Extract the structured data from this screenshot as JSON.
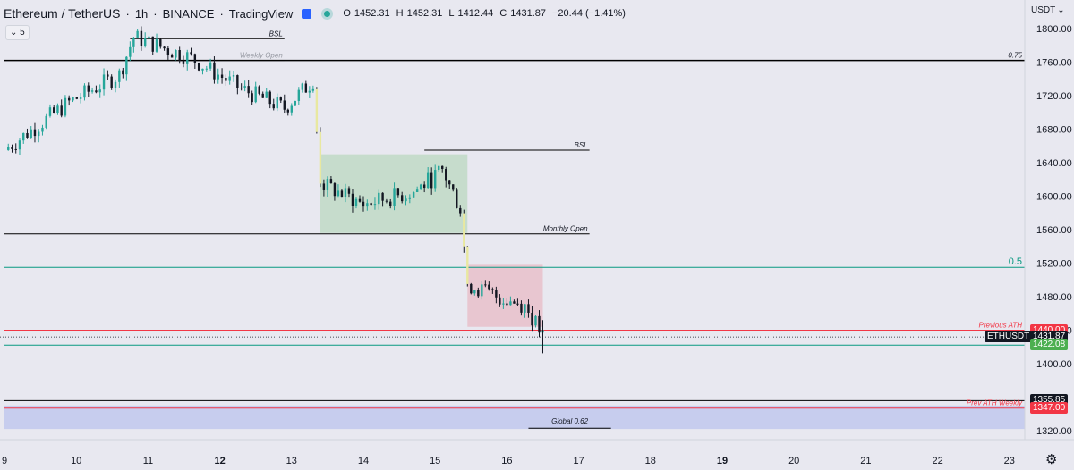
{
  "header": {
    "symbol": "Ethereum / TetherUS",
    "interval": "1h",
    "exchange": "BINANCE",
    "source": "TradingView",
    "ohlc": {
      "o_label": "O",
      "o": "1452.31",
      "h_label": "H",
      "h": "1452.31",
      "l_label": "L",
      "l": "1412.44",
      "c_label": "C",
      "c": "1431.87",
      "change": "−20.44 (−1.41%)"
    },
    "collapse_label": "5",
    "currency": "USDT"
  },
  "colors": {
    "background": "#e8e8f0",
    "up": "#26a69a",
    "down": "#131722",
    "line_black": "#000000",
    "line_green": "#089981",
    "line_red": "#f23645",
    "zone_green": "#c6dccc",
    "zone_red": "#e8c6d0",
    "zone_blue": "#c7cdee"
  },
  "chart_data": {
    "type": "candlestick",
    "x": [
      "9",
      "10",
      "11",
      "12",
      "13",
      "14",
      "15",
      "16",
      "17",
      "18",
      "19",
      "20",
      "21",
      "22",
      "23"
    ],
    "x_major": [
      "12",
      "19"
    ],
    "y_ticks": [
      "1800.00",
      "1760.00",
      "1720.00",
      "1680.00",
      "1640.00",
      "1600.00",
      "1560.00",
      "1520.00",
      "1480.00",
      "1440.00",
      "1400.00",
      "1320.00"
    ],
    "ylim": [
      1310,
      1820
    ],
    "xlim": [
      9,
      23
    ],
    "last_price": 1431.87,
    "segments": [
      {
        "t0": 9.0,
        "t1": 9.9,
        "p0": 1655,
        "p1": 1712
      },
      {
        "t0": 9.9,
        "t1": 10.6,
        "p0": 1712,
        "p1": 1745
      },
      {
        "t0": 10.6,
        "t1": 10.8,
        "p0": 1745,
        "p1": 1790
      },
      {
        "t0": 10.8,
        "t1": 11.6,
        "p0": 1790,
        "p1": 1765
      },
      {
        "t0": 11.6,
        "t1": 12.3,
        "p0": 1765,
        "p1": 1728
      },
      {
        "t0": 12.3,
        "t1": 12.9,
        "p0": 1728,
        "p1": 1705
      },
      {
        "t0": 12.9,
        "t1": 13.3,
        "p0": 1705,
        "p1": 1738
      },
      {
        "t0": 13.3,
        "t1": 13.4,
        "p0": 1738,
        "p1": 1615
      },
      {
        "t0": 13.4,
        "t1": 14.0,
        "p0": 1615,
        "p1": 1590
      },
      {
        "t0": 14.0,
        "t1": 14.7,
        "p0": 1590,
        "p1": 1605
      },
      {
        "t0": 14.7,
        "t1": 15.1,
        "p0": 1605,
        "p1": 1630
      },
      {
        "t0": 15.1,
        "t1": 15.35,
        "p0": 1630,
        "p1": 1585
      },
      {
        "t0": 15.35,
        "t1": 15.45,
        "p0": 1585,
        "p1": 1495
      },
      {
        "t0": 15.45,
        "t1": 15.8,
        "p0": 1495,
        "p1": 1482
      },
      {
        "t0": 15.8,
        "t1": 16.25,
        "p0": 1482,
        "p1": 1470
      },
      {
        "t0": 16.25,
        "t1": 16.5,
        "p0": 1470,
        "p1": 1432
      }
    ],
    "hlines": [
      {
        "price": 1788,
        "x0": 10.75,
        "x1": 12.9,
        "label": "BSL"
      },
      {
        "price": 1762,
        "x0": 9.0,
        "x1": 12.9,
        "label": "Weekly Open"
      },
      {
        "price": 1762,
        "x0": 9.0,
        "x1": 23.9,
        "label": "0.75"
      },
      {
        "price": 1655,
        "x0": 14.85,
        "x1": 17.15,
        "label": "BSL"
      },
      {
        "price": 1555,
        "x0": 9.0,
        "x1": 17.15,
        "label": "Monthly Open"
      },
      {
        "price": 1515,
        "x0": 9.0,
        "x1": 23.9,
        "label": "0.5"
      },
      {
        "price": 1440,
        "x0": 9.0,
        "x1": 23.9,
        "label": "Previous ATH"
      },
      {
        "price": 1422.08,
        "x0": 9.0,
        "x1": 23.9,
        "label": ""
      },
      {
        "price": 1355.85,
        "x0": 9.0,
        "x1": 23.9,
        "label": ""
      },
      {
        "price": 1347,
        "x0": 9.0,
        "x1": 23.9,
        "label": "Prev ATH Weekly"
      },
      {
        "price": 1323,
        "x0": 16.3,
        "x1": 17.45,
        "label": "Global 0.62"
      }
    ],
    "zones": [
      {
        "x0": 13.4,
        "x1": 15.45,
        "p0": 1556,
        "p1": 1650,
        "color": "green"
      },
      {
        "x0": 15.45,
        "x1": 16.5,
        "p0": 1444,
        "p1": 1518,
        "color": "red"
      },
      {
        "x0": 9.0,
        "x1": 23.9,
        "p0": 1322,
        "p1": 1350,
        "color": "blue"
      }
    ],
    "price_labels": [
      {
        "value": "1440.00",
        "label": "",
        "color": "red"
      },
      {
        "value": "1431.87",
        "label": "ETHUSDT",
        "color": "black"
      },
      {
        "value": "1422.08",
        "label": "",
        "color": "green"
      },
      {
        "value": "1355.85",
        "label": "",
        "color": "black"
      },
      {
        "value": "1347.00",
        "label": "",
        "color": "red"
      }
    ]
  }
}
